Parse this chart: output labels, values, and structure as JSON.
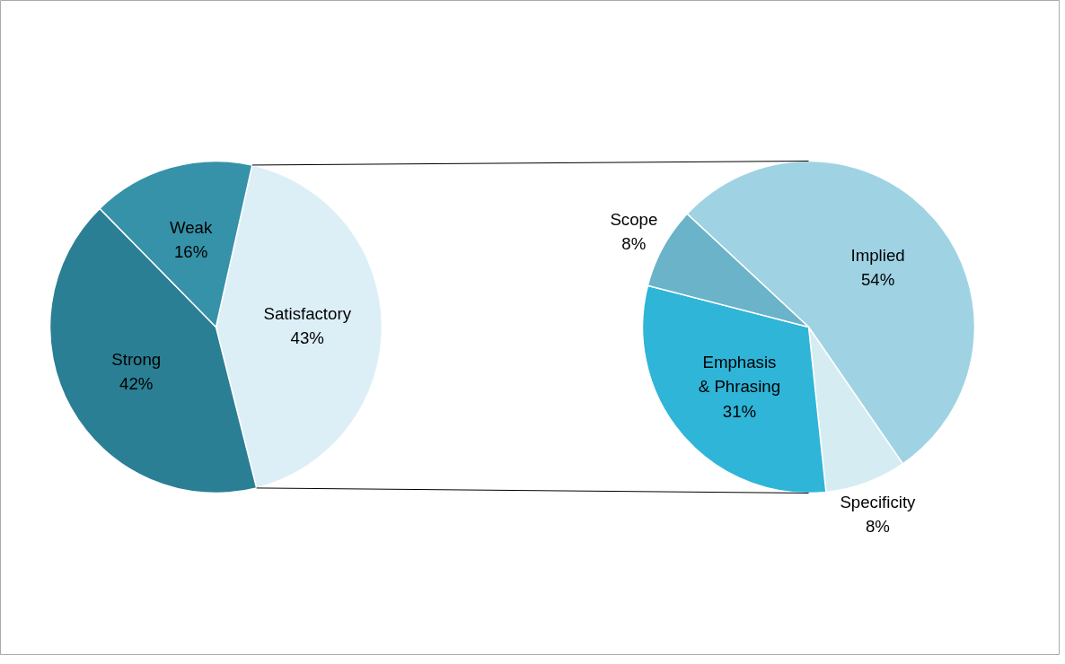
{
  "chart_data": [
    {
      "type": "pie",
      "categories": [
        "Satisfactory",
        "Strong",
        "Weak"
      ],
      "values": [
        43,
        42,
        16
      ],
      "colors": [
        "#dceff7",
        "#2a7f94",
        "#3592a8"
      ],
      "value_labels": [
        "43%",
        "42%",
        "16%"
      ]
    },
    {
      "type": "pie",
      "categories": [
        "Implied",
        "Specificity",
        "Emphasis & Phrasing",
        "Scope"
      ],
      "values": [
        54,
        8,
        31,
        8
      ],
      "colors": [
        "#9fd3e4",
        "#d5ecf3",
        "#2fb5d8",
        "#6ab3c9"
      ],
      "value_labels": [
        "54%",
        "8%",
        "31%",
        "8%"
      ]
    }
  ]
}
